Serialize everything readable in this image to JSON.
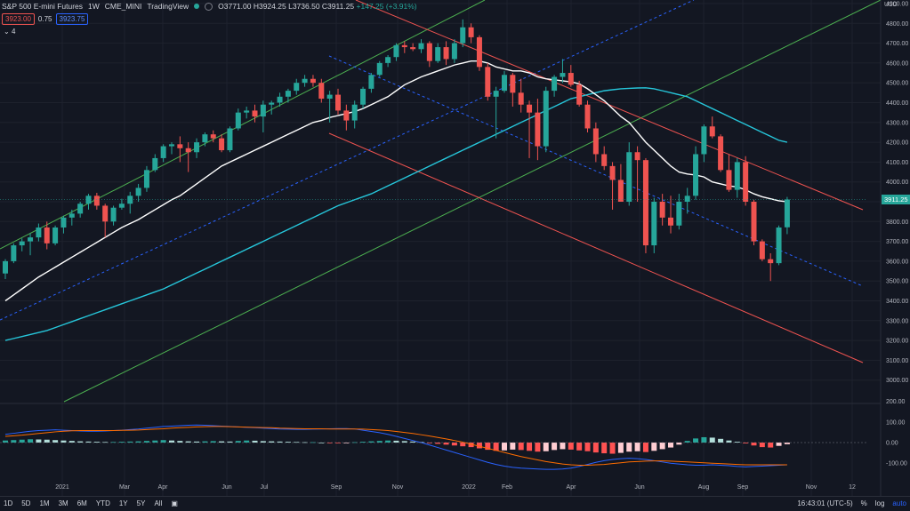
{
  "header": {
    "symbol": "S&P 500 E-mini Futures",
    "interval": "1W",
    "exchange": "CME_MINI",
    "source": "TradingView",
    "open": "O3771.00",
    "high": "H3924.25",
    "low": "L3736.50",
    "close": "C3911.25",
    "change": "+147.25 (+3.91%)",
    "sell_price": "3923.00",
    "spread": "0.75",
    "buy_price": "3923.75",
    "indicator_count": "4"
  },
  "axes": {
    "currency": "USD",
    "price_ticks": [
      "4900.00",
      "4800.00",
      "4700.00",
      "4600.00",
      "4500.00",
      "4400.00",
      "4300.00",
      "4200.00",
      "4100.00",
      "4000.00",
      "3900.00",
      "3800.00",
      "3700.00",
      "3600.00",
      "3500.00",
      "3400.00",
      "3300.00",
      "3200.00",
      "3100.00",
      "3000.00"
    ],
    "macd_ticks": [
      "200.00",
      "100.00",
      "0.00",
      "-100.00"
    ],
    "last_price_label": "3911.25",
    "time_labels": [
      "2021",
      "Mar",
      "Apr",
      "Jun",
      "Jul",
      "Sep",
      "Nov",
      "2022",
      "Feb",
      "Apr",
      "Jun",
      "Aug",
      "Sep",
      "Nov",
      "12"
    ]
  },
  "bottom": {
    "timeframes": [
      "1D",
      "5D",
      "1M",
      "3M",
      "6M",
      "YTD",
      "1Y",
      "5Y",
      "All"
    ],
    "clock": "16:43:01 (UTC-5)",
    "pct": "%",
    "log": "log",
    "auto": "auto"
  },
  "colors": {
    "background": "#131722",
    "up": "#26a69a",
    "down": "#ef5350",
    "ma_fast": "#ffffff",
    "ma_slow": "#26c6da",
    "channel_green": "#4caf50",
    "channel_red": "#ef5350",
    "dashed_blue": "#2962ff",
    "macd_line": "#2962ff",
    "signal_line": "#ff6d00"
  },
  "chart_data": {
    "type": "candlestick",
    "price_scale": {
      "min": 3000,
      "max": 4900
    },
    "start_week": "2020-11-23",
    "candles": [
      [
        3538,
        3610,
        3510,
        3600
      ],
      [
        3600,
        3690,
        3590,
        3680
      ],
      [
        3680,
        3715,
        3650,
        3700
      ],
      [
        3700,
        3740,
        3630,
        3720
      ],
      [
        3720,
        3790,
        3700,
        3770
      ],
      [
        3770,
        3800,
        3660,
        3690
      ],
      [
        3690,
        3780,
        3680,
        3770
      ],
      [
        3770,
        3830,
        3740,
        3820
      ],
      [
        3820,
        3860,
        3780,
        3840
      ],
      [
        3840,
        3900,
        3820,
        3890
      ],
      [
        3890,
        3940,
        3860,
        3930
      ],
      [
        3930,
        3945,
        3860,
        3880
      ],
      [
        3880,
        3890,
        3720,
        3800
      ],
      [
        3800,
        3880,
        3780,
        3870
      ],
      [
        3870,
        3915,
        3860,
        3890
      ],
      [
        3890,
        3950,
        3840,
        3930
      ],
      [
        3930,
        3990,
        3900,
        3970
      ],
      [
        3970,
        4080,
        3950,
        4060
      ],
      [
        4060,
        4140,
        4050,
        4120
      ],
      [
        4120,
        4190,
        4100,
        4180
      ],
      [
        4180,
        4200,
        4140,
        4190
      ],
      [
        4190,
        4230,
        4100,
        4170
      ],
      [
        4170,
        4200,
        4050,
        4150
      ],
      [
        4150,
        4220,
        4120,
        4200
      ],
      [
        4200,
        4250,
        4180,
        4240
      ],
      [
        4240,
        4260,
        4200,
        4220
      ],
      [
        4220,
        4240,
        4150,
        4160
      ],
      [
        4160,
        4280,
        4150,
        4270
      ],
      [
        4270,
        4370,
        4260,
        4350
      ],
      [
        4350,
        4380,
        4320,
        4360
      ],
      [
        4360,
        4390,
        4300,
        4330
      ],
      [
        4330,
        4410,
        4250,
        4390
      ],
      [
        4390,
        4410,
        4340,
        4400
      ],
      [
        4400,
        4450,
        4380,
        4430
      ],
      [
        4430,
        4470,
        4400,
        4460
      ],
      [
        4460,
        4520,
        4440,
        4500
      ],
      [
        4500,
        4540,
        4480,
        4520
      ],
      [
        4520,
        4540,
        4480,
        4500
      ],
      [
        4500,
        4520,
        4400,
        4420
      ],
      [
        4420,
        4460,
        4300,
        4440
      ],
      [
        4440,
        4470,
        4340,
        4360
      ],
      [
        4360,
        4390,
        4260,
        4310
      ],
      [
        4310,
        4410,
        4270,
        4390
      ],
      [
        4390,
        4480,
        4370,
        4470
      ],
      [
        4470,
        4550,
        4450,
        4540
      ],
      [
        4540,
        4610,
        4530,
        4600
      ],
      [
        4600,
        4640,
        4580,
        4630
      ],
      [
        4630,
        4700,
        4610,
        4690
      ],
      [
        4690,
        4710,
        4650,
        4680
      ],
      [
        4680,
        4700,
        4660,
        4670
      ],
      [
        4670,
        4720,
        4650,
        4700
      ],
      [
        4700,
        4710,
        4580,
        4610
      ],
      [
        4610,
        4700,
        4600,
        4680
      ],
      [
        4680,
        4710,
        4590,
        4620
      ],
      [
        4620,
        4720,
        4600,
        4700
      ],
      [
        4700,
        4820,
        4680,
        4780
      ],
      [
        4780,
        4800,
        4700,
        4730
      ],
      [
        4730,
        4740,
        4560,
        4580
      ],
      [
        4580,
        4600,
        4410,
        4430
      ],
      [
        4430,
        4480,
        4220,
        4460
      ],
      [
        4460,
        4560,
        4450,
        4540
      ],
      [
        4540,
        4550,
        4380,
        4450
      ],
      [
        4450,
        4520,
        4350,
        4390
      ],
      [
        4390,
        4410,
        4120,
        4350
      ],
      [
        4350,
        4420,
        4110,
        4180
      ],
      [
        4180,
        4480,
        4150,
        4460
      ],
      [
        4460,
        4540,
        4430,
        4530
      ],
      [
        4530,
        4620,
        4500,
        4550
      ],
      [
        4550,
        4590,
        4480,
        4490
      ],
      [
        4490,
        4510,
        4380,
        4390
      ],
      [
        4390,
        4410,
        4250,
        4270
      ],
      [
        4270,
        4300,
        4100,
        4140
      ],
      [
        4140,
        4180,
        4060,
        4080
      ],
      [
        4080,
        4100,
        3860,
        4010
      ],
      [
        4010,
        4090,
        3900,
        3900
      ],
      [
        3900,
        4200,
        3880,
        4150
      ],
      [
        4150,
        4180,
        3900,
        4110
      ],
      [
        4110,
        4120,
        3640,
        3680
      ],
      [
        3680,
        3920,
        3640,
        3900
      ],
      [
        3900,
        3940,
        3780,
        3820
      ],
      [
        3820,
        3930,
        3740,
        3780
      ],
      [
        3780,
        3940,
        3760,
        3900
      ],
      [
        3900,
        3970,
        3840,
        3930
      ],
      [
        3930,
        4180,
        3910,
        4140
      ],
      [
        4140,
        4290,
        4100,
        4280
      ],
      [
        4280,
        4330,
        4220,
        4230
      ],
      [
        4230,
        4240,
        4050,
        4060
      ],
      [
        4060,
        4140,
        3950,
        3960
      ],
      [
        3960,
        4120,
        3920,
        4100
      ],
      [
        4100,
        4130,
        3880,
        3900
      ],
      [
        3900,
        3910,
        3680,
        3700
      ],
      [
        3700,
        3710,
        3600,
        3610
      ],
      [
        3610,
        3640,
        3500,
        3590
      ],
      [
        3590,
        3780,
        3580,
        3770
      ],
      [
        3771,
        3924.25,
        3736.5,
        3911.25
      ]
    ],
    "ma_fast": [
      3400,
      3430,
      3460,
      3490,
      3520,
      3545,
      3570,
      3595,
      3620,
      3645,
      3670,
      3695,
      3720,
      3745,
      3770,
      3790,
      3810,
      3835,
      3860,
      3885,
      3910,
      3930,
      3960,
      3990,
      4020,
      4050,
      4080,
      4100,
      4120,
      4140,
      4160,
      4180,
      4200,
      4220,
      4240,
      4260,
      4280,
      4300,
      4310,
      4325,
      4335,
      4345,
      4355,
      4370,
      4390,
      4410,
      4430,
      4460,
      4490,
      4510,
      4530,
      4545,
      4560,
      4575,
      4590,
      4600,
      4610,
      4610,
      4600,
      4580,
      4570,
      4560,
      4560,
      4550,
      4530,
      4520,
      4515,
      4510,
      4505,
      4495,
      4470,
      4440,
      4410,
      4370,
      4330,
      4300,
      4250,
      4200,
      4160,
      4120,
      4080,
      4050,
      4040,
      4035,
      4025,
      4000,
      3990,
      3980,
      3975,
      3960,
      3940,
      3925,
      3915,
      3905,
      3900
    ],
    "ma_slow": [
      3200,
      3210,
      3220,
      3230,
      3240,
      3250,
      3265,
      3280,
      3295,
      3310,
      3325,
      3340,
      3355,
      3370,
      3385,
      3400,
      3415,
      3430,
      3445,
      3460,
      3480,
      3500,
      3520,
      3540,
      3560,
      3580,
      3600,
      3620,
      3640,
      3660,
      3680,
      3700,
      3720,
      3740,
      3760,
      3780,
      3800,
      3820,
      3840,
      3860,
      3880,
      3895,
      3910,
      3925,
      3940,
      3960,
      3980,
      4000,
      4020,
      4040,
      4060,
      4080,
      4100,
      4120,
      4140,
      4160,
      4180,
      4200,
      4220,
      4240,
      4260,
      4280,
      4300,
      4320,
      4340,
      4360,
      4380,
      4400,
      4420,
      4430,
      4440,
      4450,
      4460,
      4465,
      4470,
      4472,
      4474,
      4475,
      4470,
      4460,
      4450,
      4440,
      4430,
      4410,
      4390,
      4370,
      4350,
      4330,
      4310,
      4290,
      4270,
      4250,
      4230,
      4210,
      4200
    ],
    "macd": {
      "scale": {
        "min": -200,
        "max": 200
      },
      "histogram": [
        10,
        12,
        14,
        16,
        15,
        14,
        12,
        10,
        8,
        6,
        5,
        4,
        3,
        3,
        4,
        5,
        6,
        8,
        10,
        12,
        10,
        8,
        6,
        5,
        6,
        7,
        6,
        5,
        8,
        10,
        9,
        7,
        6,
        5,
        4,
        3,
        2,
        2,
        0,
        -2,
        -3,
        -1,
        2,
        4,
        6,
        8,
        10,
        9,
        7,
        5,
        3,
        -2,
        -6,
        -10,
        -14,
        -18,
        -22,
        -28,
        -35,
        -40,
        -38,
        -34,
        -36,
        -40,
        -44,
        -42,
        -36,
        -32,
        -34,
        -38,
        -42,
        -48,
        -52,
        -54,
        -50,
        -44,
        -42,
        -46,
        -40,
        -32,
        -24,
        -10,
        8,
        20,
        26,
        24,
        18,
        10,
        4,
        -4,
        -14,
        -22,
        -24,
        -16,
        -8
      ],
      "macd_line": [
        40,
        45,
        50,
        55,
        58,
        60,
        62,
        60,
        58,
        56,
        55,
        55,
        56,
        58,
        60,
        63,
        66,
        70,
        74,
        78,
        80,
        82,
        84,
        85,
        84,
        82,
        80,
        78,
        76,
        74,
        72,
        70,
        68,
        66,
        65,
        64,
        64,
        65,
        66,
        67,
        68,
        68,
        66,
        60,
        54,
        48,
        40,
        30,
        20,
        10,
        0,
        -12,
        -24,
        -36,
        -48,
        -60,
        -72,
        -84,
        -96,
        -106,
        -114,
        -120,
        -124,
        -126,
        -128,
        -130,
        -130,
        -128,
        -124,
        -116,
        -106,
        -96,
        -88,
        -82,
        -78,
        -76,
        -78,
        -82,
        -88,
        -94,
        -100,
        -104,
        -108,
        -110,
        -110,
        -108,
        -110,
        -112,
        -116,
        -118,
        -116,
        -114,
        -112,
        -110,
        -108
      ],
      "signal_line": [
        30,
        33,
        36,
        40,
        44,
        48,
        52,
        55,
        57,
        58,
        58,
        58,
        58,
        58,
        59,
        60,
        61,
        63,
        65,
        67,
        70,
        72,
        74,
        76,
        77,
        78,
        78,
        77,
        76,
        75,
        74,
        73,
        72,
        70,
        69,
        68,
        67,
        67,
        67,
        66,
        66,
        66,
        66,
        65,
        63,
        61,
        58,
        54,
        49,
        44,
        38,
        32,
        25,
        18,
        10,
        2,
        -8,
        -18,
        -28,
        -38,
        -48,
        -58,
        -68,
        -76,
        -84,
        -92,
        -98,
        -104,
        -108,
        -110,
        -110,
        -108,
        -106,
        -102,
        -98,
        -94,
        -92,
        -90,
        -89,
        -89,
        -90,
        -92,
        -94,
        -96,
        -98,
        -100,
        -102,
        -104,
        -106,
        -108,
        -108,
        -108,
        -108,
        -108,
        -108
      ]
    }
  }
}
